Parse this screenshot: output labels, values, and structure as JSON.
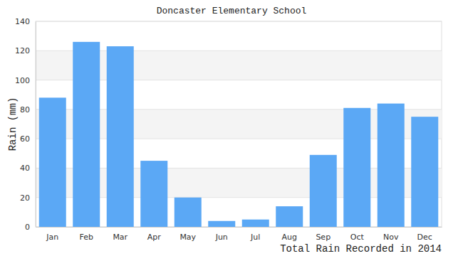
{
  "chart_data": {
    "type": "bar",
    "title": "Doncaster Elementary School",
    "x_label": "Total Rain Recorded in 2014",
    "y_label": "Rain (mm)",
    "categories": [
      "Jan",
      "Feb",
      "Mar",
      "Apr",
      "May",
      "Jun",
      "Jul",
      "Aug",
      "Sep",
      "Oct",
      "Nov",
      "Dec"
    ],
    "values": [
      88,
      126,
      123,
      45,
      20,
      4,
      5,
      14,
      49,
      81,
      84,
      75
    ],
    "color": "#5ba8f5",
    "ylim": [
      0,
      140
    ],
    "yticks": [
      0,
      20,
      40,
      60,
      80,
      100,
      120,
      140
    ],
    "grid": true
  }
}
